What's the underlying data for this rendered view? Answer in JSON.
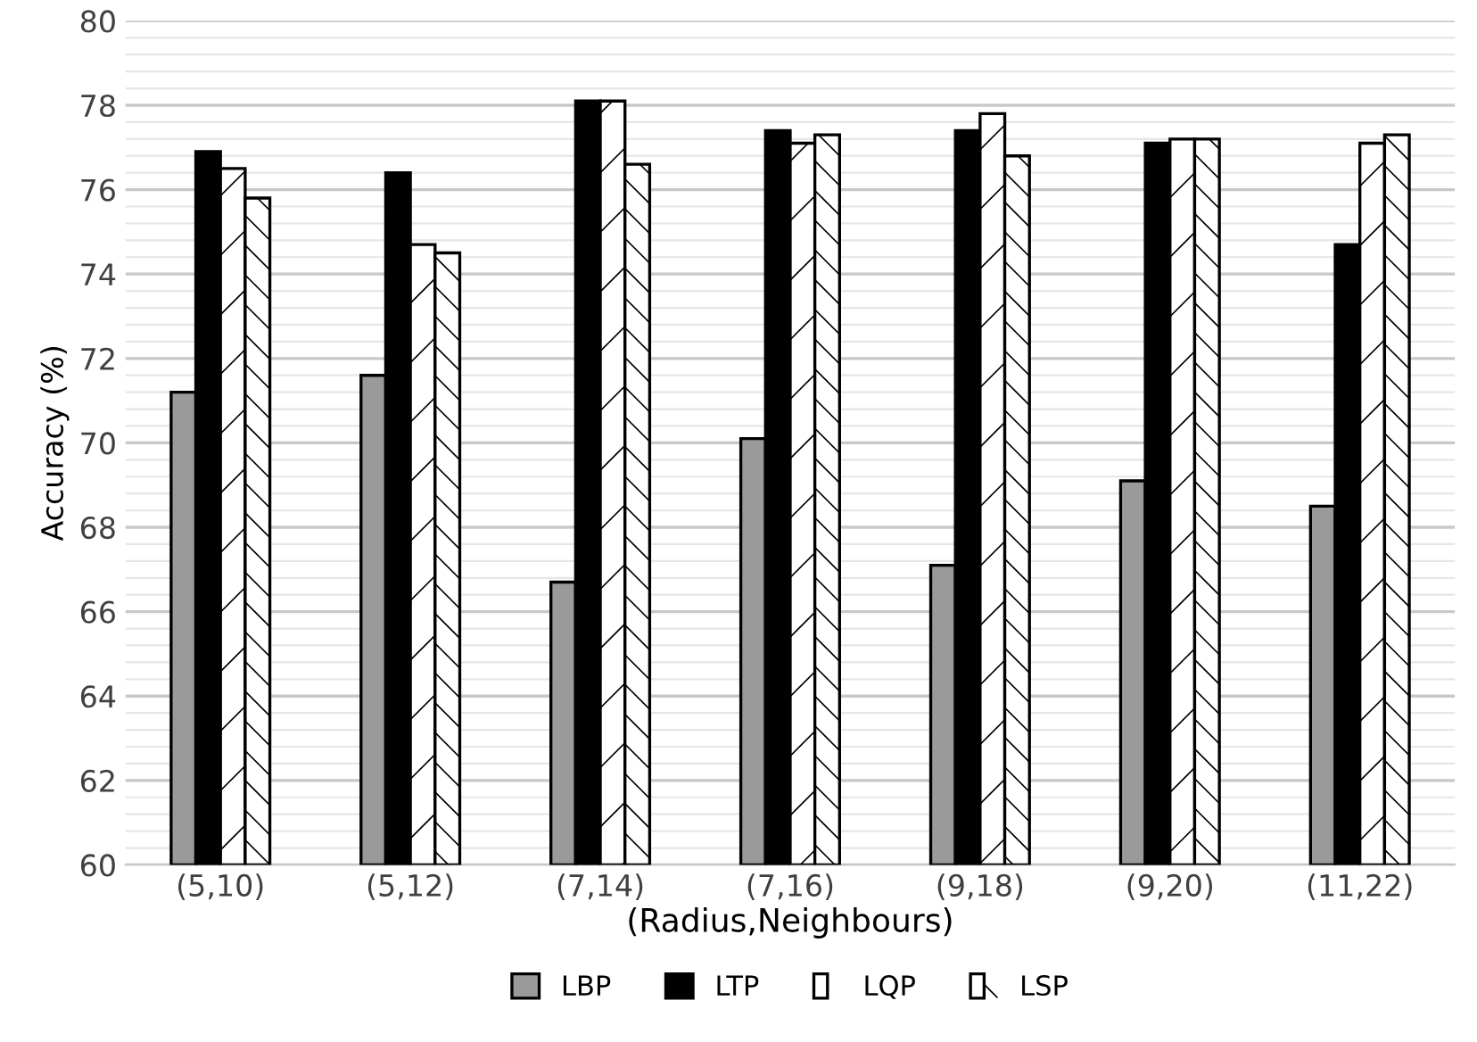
{
  "chart_data": {
    "type": "bar",
    "xlabel": "(Radius,Neighbours)",
    "ylabel": "Accuracy (%)",
    "categories": [
      "(5,10)",
      "(5,12)",
      "(7,14)",
      "(7,16)",
      "(9,18)",
      "(9,20)",
      "(11,22)"
    ],
    "series": [
      {
        "name": "LBP",
        "color": "#9a9a9a",
        "values": [
          71.2,
          71.6,
          66.7,
          70.1,
          67.1,
          69.1,
          68.5
        ]
      },
      {
        "name": "LTP",
        "color": "#000000",
        "values": [
          76.9,
          76.4,
          78.1,
          77.4,
          77.4,
          77.1,
          74.7
        ]
      },
      {
        "name": "LQP",
        "color": "#ffffff",
        "values": [
          76.5,
          74.7,
          78.1,
          77.1,
          77.8,
          77.2,
          77.1
        ]
      },
      {
        "name": "LSP",
        "color": "#ffffff",
        "values": [
          75.8,
          74.5,
          76.6,
          77.3,
          76.8,
          77.2,
          77.3
        ]
      }
    ],
    "ylim": [
      60,
      80
    ],
    "yticks": [
      60,
      62,
      64,
      66,
      68,
      70,
      72,
      74,
      76,
      78,
      80
    ],
    "grid": "y",
    "legend": "bottom"
  }
}
